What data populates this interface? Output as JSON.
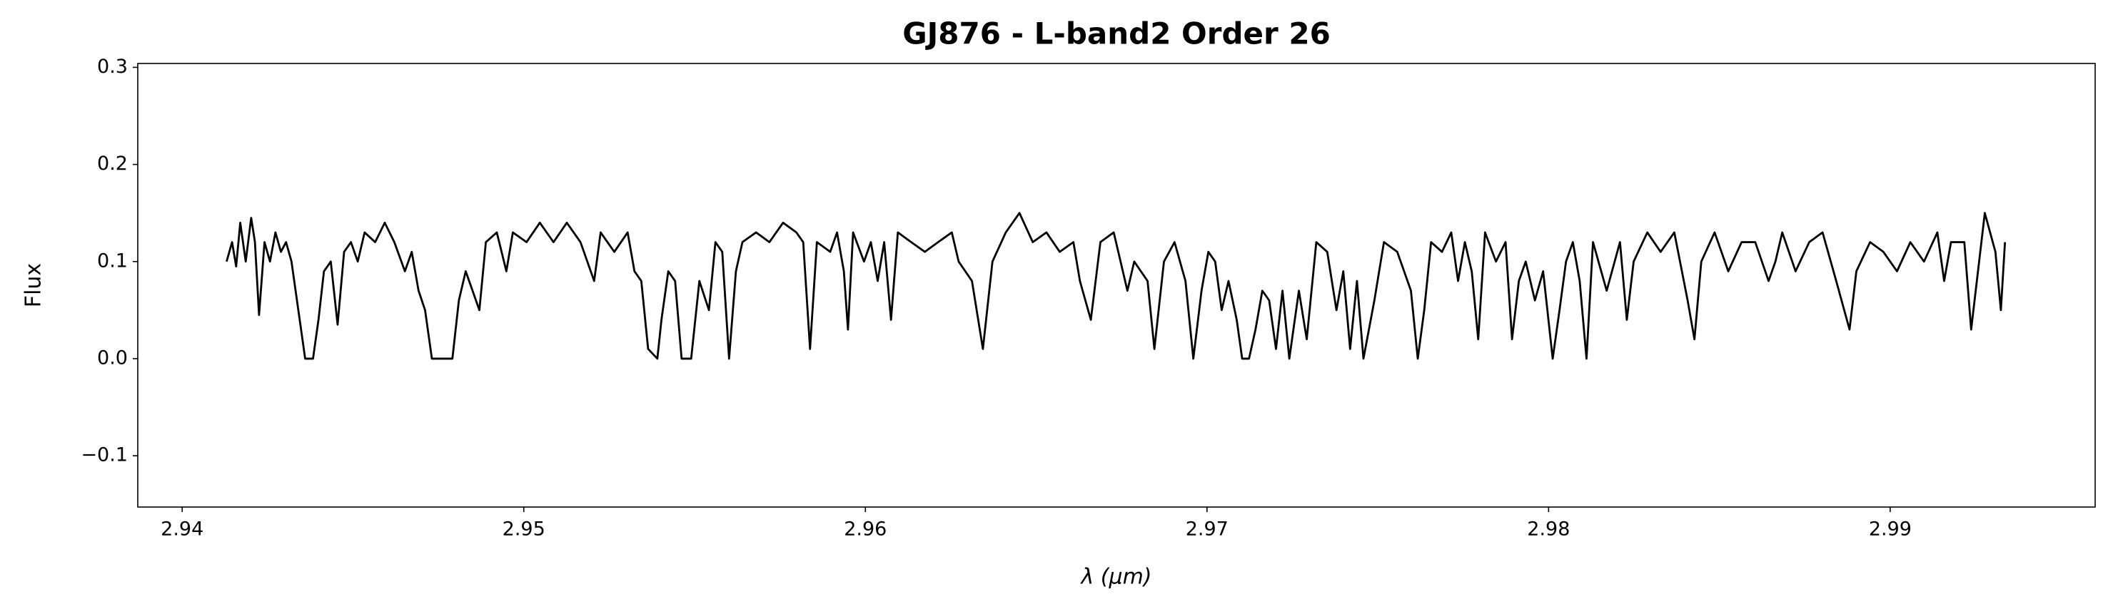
{
  "chart_data": {
    "type": "line",
    "title": "GJ876 - L-band2 Order 26",
    "xlabel": "λ (μm)",
    "ylabel": "Flux",
    "color": "#000000",
    "grid": false,
    "xlim": [
      2.9387,
      2.996
    ],
    "ylim": [
      -0.1528,
      0.304
    ],
    "xticks": [
      2.94,
      2.95,
      2.96,
      2.97,
      2.98,
      2.99
    ],
    "yticks": [
      {
        "value": -0.1,
        "label": "−0.1"
      },
      {
        "value": 0,
        "label": "0.0"
      },
      0.1,
      0.2,
      0.3
    ],
    "x": [
      2.9413,
      2.94146,
      2.94158,
      2.9417,
      2.94186,
      2.94202,
      2.94213,
      2.94225,
      2.94241,
      2.94257,
      2.94273,
      2.94289,
      2.94304,
      2.9432,
      2.94328,
      2.94344,
      2.9436,
      2.94383,
      2.94399,
      2.94415,
      2.94435,
      2.94455,
      2.94474,
      2.94494,
      2.94514,
      2.94534,
      2.94565,
      2.94593,
      2.94621,
      2.94652,
      2.94672,
      2.94692,
      2.94711,
      2.94731,
      2.94791,
      2.9481,
      2.9483,
      2.9485,
      2.9487,
      2.94889,
      2.94921,
      2.94949,
      2.94968,
      2.95008,
      2.95047,
      2.95087,
      2.95126,
      2.95166,
      2.95206,
      2.95225,
      2.95265,
      2.95304,
      2.95324,
      2.95344,
      2.95364,
      2.95391,
      2.95403,
      2.95423,
      2.95443,
      2.95462,
      2.9549,
      2.95514,
      2.95542,
      2.95561,
      2.95581,
      2.95601,
      2.95621,
      2.9564,
      2.9568,
      2.95719,
      2.95759,
      2.95798,
      2.95818,
      2.95838,
      2.95858,
      2.95897,
      2.95917,
      2.95937,
      2.95949,
      2.95964,
      2.95996,
      2.96016,
      2.96036,
      2.96055,
      2.96075,
      2.96095,
      2.96134,
      2.96174,
      2.96213,
      2.96253,
      2.96273,
      2.96312,
      2.96344,
      2.96372,
      2.96411,
      2.96451,
      2.9649,
      2.9653,
      2.96569,
      2.96609,
      2.96628,
      2.9666,
      2.96688,
      2.96727,
      2.96767,
      2.96787,
      2.96826,
      2.96846,
      2.96874,
      2.96905,
      2.96937,
      2.9696,
      2.96984,
      2.97004,
      2.97024,
      2.97043,
      2.97063,
      2.97087,
      2.97103,
      2.97123,
      2.97142,
      2.97162,
      2.97182,
      2.97202,
      2.97221,
      2.97241,
      2.97269,
      2.97292,
      2.9732,
      2.97352,
      2.97379,
      2.97399,
      2.97419,
      2.97439,
      2.97458,
      2.9749,
      2.97518,
      2.97557,
      2.97597,
      2.97617,
      2.97636,
      2.97656,
      2.97688,
      2.97715,
      2.97735,
      2.97755,
      2.97775,
      2.97794,
      2.97814,
      2.97846,
      2.97874,
      2.97893,
      2.97913,
      2.97933,
      2.9796,
      2.97984,
      2.98012,
      2.98032,
      2.98051,
      2.98071,
      2.98091,
      2.98111,
      2.9813,
      2.9817,
      2.98209,
      2.98229,
      2.98249,
      2.98289,
      2.98328,
      2.98368,
      2.98407,
      2.98427,
      2.98447,
      2.98486,
      2.98526,
      2.98565,
      2.98605,
      2.98644,
      2.98664,
      2.98684,
      2.98723,
      2.98763,
      2.98802,
      2.98842,
      2.98881,
      2.98901,
      2.98941,
      2.9898,
      2.9902,
      2.99059,
      2.99099,
      2.99138,
      2.99158,
      2.99178,
      2.99217,
      2.99237,
      2.99257,
      2.99277,
      2.99308,
      2.99324,
      2.99336
    ],
    "values": [
      0.1,
      0.12,
      0.095,
      0.14,
      0.1,
      0.145,
      0.12,
      0.045,
      0.12,
      0.1,
      0.13,
      0.11,
      0.12,
      0.1,
      0.08,
      0.04,
      0.0,
      0.0,
      0.04,
      0.09,
      0.1,
      0.035,
      0.11,
      0.12,
      0.1,
      0.13,
      0.12,
      0.14,
      0.12,
      0.09,
      0.11,
      0.07,
      0.05,
      0.0,
      0.0,
      0.06,
      0.09,
      0.07,
      0.05,
      0.12,
      0.13,
      0.09,
      0.13,
      0.12,
      0.14,
      0.12,
      0.14,
      0.12,
      0.08,
      0.13,
      0.11,
      0.13,
      0.09,
      0.08,
      0.01,
      0.0,
      0.04,
      0.09,
      0.08,
      0.0,
      0.0,
      0.08,
      0.05,
      0.12,
      0.11,
      0.0,
      0.09,
      0.12,
      0.13,
      0.12,
      0.14,
      0.13,
      0.12,
      0.01,
      0.12,
      0.11,
      0.13,
      0.09,
      0.03,
      0.13,
      0.1,
      0.12,
      0.08,
      0.12,
      0.04,
      0.13,
      0.12,
      0.11,
      0.12,
      0.13,
      0.1,
      0.08,
      0.01,
      0.1,
      0.13,
      0.15,
      0.12,
      0.13,
      0.11,
      0.12,
      0.08,
      0.04,
      0.12,
      0.13,
      0.07,
      0.1,
      0.08,
      0.01,
      0.1,
      0.12,
      0.08,
      0.0,
      0.07,
      0.11,
      0.1,
      0.05,
      0.08,
      0.04,
      0.0,
      0.0,
      0.03,
      0.07,
      0.06,
      0.01,
      0.07,
      0.0,
      0.07,
      0.02,
      0.12,
      0.11,
      0.05,
      0.09,
      0.01,
      0.08,
      0.0,
      0.06,
      0.12,
      0.11,
      0.07,
      0.0,
      0.05,
      0.12,
      0.11,
      0.13,
      0.08,
      0.12,
      0.09,
      0.02,
      0.13,
      0.1,
      0.12,
      0.02,
      0.08,
      0.1,
      0.06,
      0.09,
      0.0,
      0.05,
      0.1,
      0.12,
      0.08,
      0.0,
      0.12,
      0.07,
      0.12,
      0.04,
      0.1,
      0.13,
      0.11,
      0.13,
      0.06,
      0.02,
      0.1,
      0.13,
      0.09,
      0.12,
      0.12,
      0.08,
      0.1,
      0.13,
      0.09,
      0.12,
      0.13,
      0.08,
      0.03,
      0.09,
      0.12,
      0.11,
      0.09,
      0.12,
      0.1,
      0.13,
      0.08,
      0.12,
      0.12,
      0.03,
      0.09,
      0.15,
      0.11,
      0.05,
      0.12
    ]
  }
}
